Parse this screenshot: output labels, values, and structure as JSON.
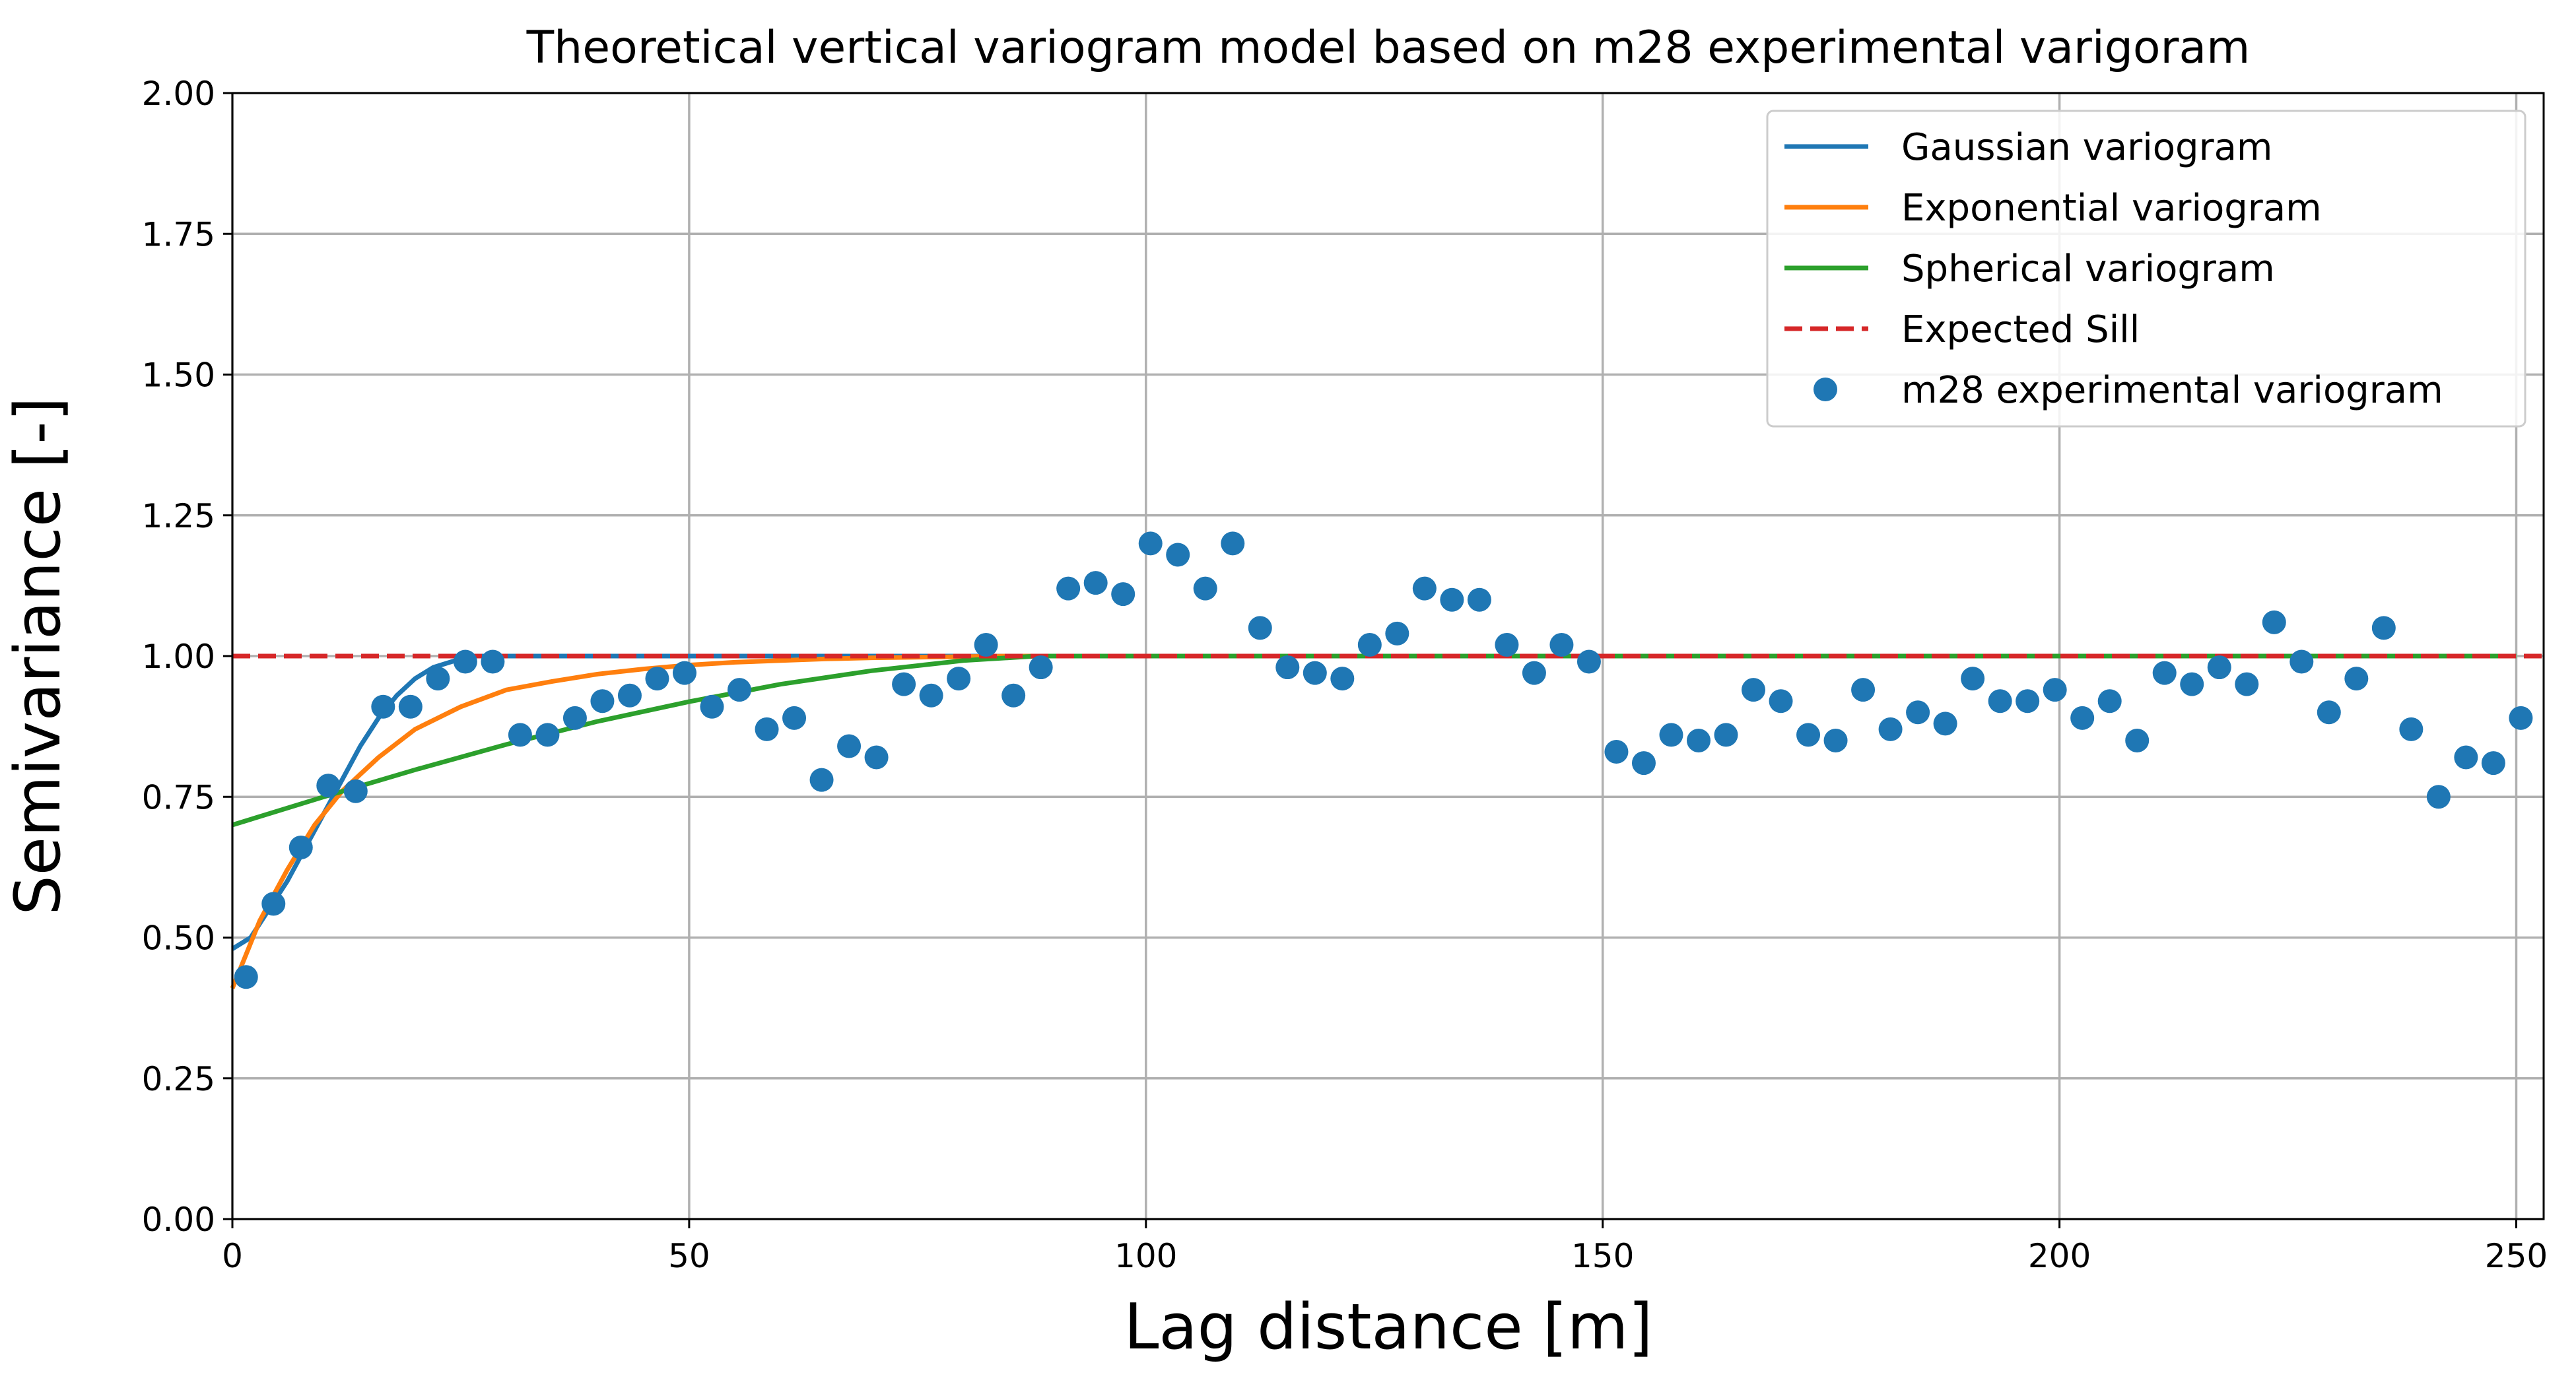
{
  "chart_data": {
    "type": "line",
    "title": "Theoretical vertical variogram model based on m28 experimental varigoram",
    "xlabel": "Lag distance [m]",
    "ylabel": "Semivariance [-]",
    "xlim": [
      0,
      253
    ],
    "ylim": [
      0,
      2
    ],
    "grid": true,
    "legend_position": "top-right",
    "x_ticks": [
      "0",
      "50",
      "100",
      "150",
      "200",
      "250"
    ],
    "y_ticks": [
      "0.00",
      "0.25",
      "0.50",
      "0.75",
      "1.00",
      "1.25",
      "1.50",
      "1.75",
      "2.00"
    ],
    "legend": [
      "Gaussian variogram",
      "Exponential variogram",
      "Spherical variogram",
      "Expected Sill",
      "m28 experimental variogram"
    ],
    "series": [
      {
        "name": "Gaussian variogram",
        "style": "line",
        "color": "#1f77b4",
        "x": [
          0,
          2,
          4,
          6,
          8,
          10,
          12,
          14,
          16,
          18,
          20,
          22,
          24,
          26,
          28,
          30,
          40,
          50,
          60,
          70,
          80,
          90,
          100,
          250
        ],
        "y": [
          0.48,
          0.5,
          0.55,
          0.6,
          0.66,
          0.72,
          0.78,
          0.84,
          0.89,
          0.93,
          0.96,
          0.98,
          0.99,
          1.0,
          1.0,
          1.0,
          1.0,
          1.0,
          1.0,
          1.0,
          1.0,
          1.0,
          1.0,
          1.0
        ]
      },
      {
        "name": "Exponential variogram",
        "style": "line",
        "color": "#ff7f0e",
        "x": [
          0,
          3,
          6,
          9,
          12,
          16,
          20,
          25,
          30,
          35,
          40,
          45,
          50,
          55,
          60,
          65,
          70,
          75,
          80,
          85,
          90,
          250
        ],
        "y": [
          0.41,
          0.53,
          0.62,
          0.7,
          0.76,
          0.82,
          0.87,
          0.91,
          0.94,
          0.955,
          0.968,
          0.977,
          0.984,
          0.989,
          0.992,
          0.995,
          0.997,
          0.998,
          0.999,
          1.0,
          1.0,
          1.0
        ]
      },
      {
        "name": "Spherical variogram",
        "style": "line",
        "color": "#2ca02c",
        "x": [
          0,
          10,
          20,
          30,
          40,
          50,
          60,
          70,
          80,
          88,
          100,
          250
        ],
        "y": [
          0.7,
          0.75,
          0.798,
          0.843,
          0.884,
          0.919,
          0.95,
          0.974,
          0.992,
          1.0,
          1.0,
          1.0
        ]
      },
      {
        "name": "Expected Sill",
        "style": "dashed",
        "color": "#d62728",
        "x": [
          0,
          253
        ],
        "y": [
          1.0,
          1.0
        ]
      },
      {
        "name": "m28 experimental variogram",
        "style": "scatter",
        "color": "#1f77b4",
        "x": [
          1.5,
          4.5,
          7.5,
          10.5,
          13.5,
          16.5,
          19.5,
          22.5,
          25.5,
          28.5,
          31.5,
          34.5,
          37.5,
          40.5,
          43.5,
          46.5,
          49.5,
          52.5,
          55.5,
          58.5,
          61.5,
          64.5,
          67.5,
          70.5,
          73.5,
          76.5,
          79.5,
          82.5,
          85.5,
          88.5,
          91.5,
          94.5,
          97.5,
          100.5,
          103.5,
          106.5,
          109.5,
          112.5,
          115.5,
          118.5,
          121.5,
          124.5,
          127.5,
          130.5,
          133.5,
          136.5,
          139.5,
          142.5,
          145.5,
          148.5,
          151.5,
          154.5,
          157.5,
          160.5,
          163.5,
          166.5,
          169.5,
          172.5,
          175.5,
          178.5,
          181.5,
          184.5,
          187.5,
          190.5,
          193.5,
          196.5,
          199.5,
          202.5,
          205.5,
          208.5,
          211.5,
          214.5,
          217.5,
          220.5,
          223.5,
          226.5,
          229.5,
          232.5,
          235.5,
          238.5,
          241.5,
          244.5,
          247.5,
          250.5
        ],
        "y": [
          0.43,
          0.56,
          0.66,
          0.77,
          0.76,
          0.91,
          0.91,
          0.96,
          0.99,
          0.99,
          0.86,
          0.86,
          0.89,
          0.92,
          0.93,
          0.96,
          0.97,
          0.91,
          0.94,
          0.87,
          0.89,
          0.78,
          0.84,
          0.82,
          0.95,
          0.93,
          0.96,
          1.02,
          0.93,
          0.98,
          1.12,
          1.13,
          1.11,
          1.2,
          1.18,
          1.12,
          1.2,
          1.05,
          0.98,
          0.97,
          0.96,
          1.02,
          1.04,
          1.12,
          1.1,
          1.1,
          1.02,
          0.97,
          1.02,
          0.99,
          0.83,
          0.81,
          0.86,
          0.85,
          0.86,
          0.94,
          0.92,
          0.86,
          0.85,
          0.94,
          0.87,
          0.9,
          0.88,
          0.96,
          0.92,
          0.92,
          0.94,
          0.89,
          0.92,
          0.85,
          0.97,
          0.95,
          0.98,
          0.95,
          1.06,
          0.99,
          0.9,
          0.96,
          1.05,
          0.87,
          0.75,
          0.82,
          0.81,
          0.89
        ]
      }
    ]
  }
}
